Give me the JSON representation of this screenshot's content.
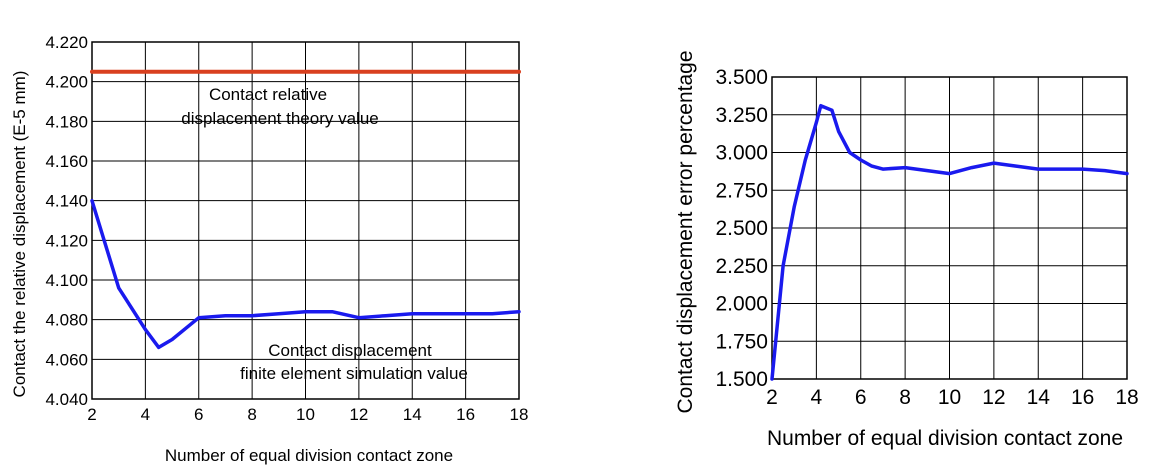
{
  "colors": {
    "theory": "#d9401f",
    "simulation": "#1a1aee",
    "error": "#1a1aee",
    "grid": "#000000"
  },
  "chart_data": [
    {
      "type": "line",
      "xlabel": "Number of equal division contact zone",
      "ylabel": "Contact the relative displacement (E-5 mm)",
      "xlim": [
        2,
        18
      ],
      "ylim": [
        4.04,
        4.22
      ],
      "x_ticks": [
        "2",
        "4",
        "6",
        "8",
        "10",
        "12",
        "14",
        "16",
        "18"
      ],
      "y_ticks": [
        "4.040",
        "4.060",
        "4.080",
        "4.100",
        "4.120",
        "4.140",
        "4.160",
        "4.180",
        "4.200",
        "4.220"
      ],
      "grid": true,
      "annotations": [
        {
          "text": "Contact relative",
          "series": "theory"
        },
        {
          "text": "displacement theory value",
          "series": "theory"
        },
        {
          "text": "Contact displacement",
          "series": "simulation"
        },
        {
          "text": "finite element simulation value",
          "series": "simulation"
        }
      ],
      "series": [
        {
          "id": "theory",
          "x": [
            2,
            18
          ],
          "y": [
            4.205,
            4.205
          ]
        },
        {
          "id": "simulation",
          "x": [
            2,
            3,
            4,
            4.5,
            5,
            6,
            7,
            8,
            9,
            10,
            11,
            12,
            13,
            14,
            15,
            16,
            17,
            18
          ],
          "y": [
            4.14,
            4.096,
            4.075,
            4.066,
            4.07,
            4.081,
            4.082,
            4.082,
            4.083,
            4.084,
            4.084,
            4.081,
            4.082,
            4.083,
            4.083,
            4.083,
            4.083,
            4.084
          ]
        }
      ]
    },
    {
      "type": "line",
      "xlabel": "Number of equal division contact zone",
      "ylabel": "Contact displacement error percentage",
      "xlim": [
        2,
        18
      ],
      "ylim": [
        1.5,
        3.5
      ],
      "x_ticks": [
        "2",
        "4",
        "6",
        "8",
        "10",
        "12",
        "14",
        "16",
        "18"
      ],
      "y_ticks": [
        "1.500",
        "1.750",
        "2.000",
        "2.250",
        "2.500",
        "2.750",
        "3.000",
        "3.250",
        "3.500"
      ],
      "grid": true,
      "series": [
        {
          "id": "error",
          "x": [
            2,
            2.5,
            3,
            3.5,
            4,
            4.2,
            4.7,
            5,
            5.5,
            6,
            6.5,
            7,
            8,
            9,
            10,
            11,
            12,
            13,
            14,
            15,
            16,
            17,
            18
          ],
          "y": [
            1.5,
            2.25,
            2.64,
            2.95,
            3.2,
            3.31,
            3.28,
            3.14,
            3.0,
            2.95,
            2.91,
            2.89,
            2.9,
            2.88,
            2.86,
            2.9,
            2.93,
            2.91,
            2.89,
            2.89,
            2.89,
            2.88,
            2.86
          ]
        }
      ]
    }
  ]
}
